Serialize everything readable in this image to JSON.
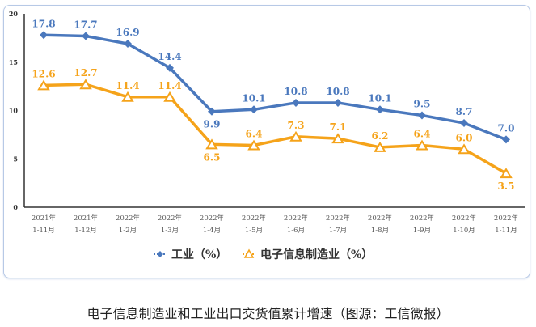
{
  "chart_data": {
    "type": "line",
    "categories": [
      [
        "2021年",
        "1-11月"
      ],
      [
        "2021年",
        "1-12月"
      ],
      [
        "2022年",
        "1-2月"
      ],
      [
        "2022年",
        "1-3月"
      ],
      [
        "2022年",
        "1-4月"
      ],
      [
        "2022年",
        "1-5月"
      ],
      [
        "2022年",
        "1-6月"
      ],
      [
        "2022年",
        "1-7月"
      ],
      [
        "2022年",
        "1-8月"
      ],
      [
        "2022年",
        "1-9月"
      ],
      [
        "2022年",
        "1-10月"
      ],
      [
        "2022年",
        "1-11月"
      ]
    ],
    "ylim": [
      0,
      20
    ],
    "yticks": [
      0,
      5,
      10,
      15,
      20
    ],
    "grid": false,
    "legend": "bottom",
    "series": [
      {
        "name": "工业（%）",
        "color": "#4a78bd",
        "marker": "diamond",
        "values": [
          17.8,
          17.7,
          16.9,
          14.4,
          9.9,
          10.1,
          10.8,
          10.8,
          10.1,
          9.5,
          8.7,
          7.0
        ],
        "labels": [
          "17.8",
          "17.7",
          "16.9",
          "14.4",
          "9.9",
          "10.1",
          "10.8",
          "10.8",
          "10.1",
          "9.5",
          "8.7",
          "7.0"
        ]
      },
      {
        "name": "电子信息制造业（%）",
        "color": "#f5a31a",
        "marker": "triangle",
        "values": [
          12.6,
          12.7,
          11.4,
          11.4,
          6.5,
          6.4,
          7.3,
          7.1,
          6.2,
          6.4,
          6.0,
          3.5
        ],
        "labels": [
          "12.6",
          "12.7",
          "11.4",
          "11.4",
          "6.5",
          "6.4",
          "7.3",
          "7.1",
          "6.2",
          "6.4",
          "6.0",
          "3.5"
        ]
      }
    ]
  },
  "caption": "电子信息制造业和工业出口交货值累计增速（图源：工信微报）"
}
